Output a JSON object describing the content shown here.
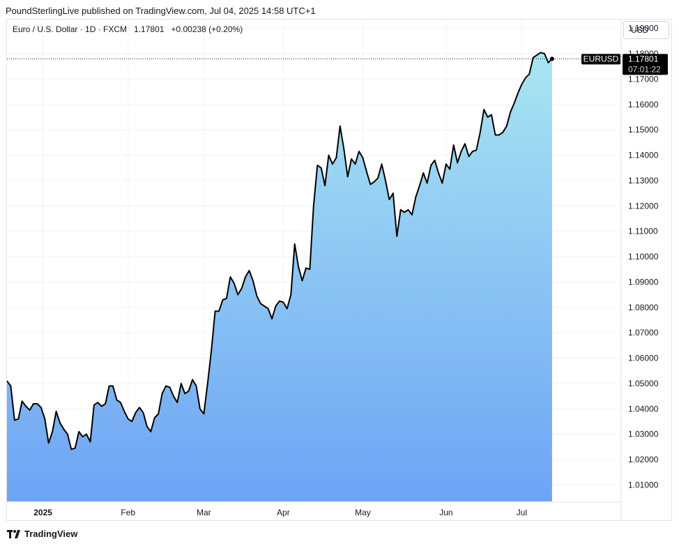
{
  "header": {
    "publisher_text": "PoundSterlingLive published on TradingView.com, Jul 04, 2025 14:58 UTC+1"
  },
  "legend": {
    "symbol_text": "Euro / U.S. Dollar · 1D · FXCM",
    "last_value": "1.17801",
    "change": "+0.00238 (+0.20%)"
  },
  "currency_selector": {
    "label": "USD"
  },
  "price_badge": {
    "ticker": "EURUSD",
    "price": "1.17801",
    "countdown": "07:01:22"
  },
  "footer": {
    "brand": "TradingView"
  },
  "colors": {
    "line": "#000000",
    "fill_top": "#a8e6f2",
    "fill_bottom": "#6ea3f5",
    "badge_bg": "#000000",
    "grid": "#f0f3fa"
  },
  "chart_data": {
    "type": "area",
    "title": "Euro / U.S. Dollar · 1D · FXCM",
    "xlabel": "",
    "ylabel": "",
    "ylim": [
      1.0035,
      1.1935
    ],
    "y_ticks": [
      "1.01000",
      "1.02000",
      "1.03000",
      "1.04000",
      "1.05000",
      "1.06000",
      "1.07000",
      "1.08000",
      "1.09000",
      "1.10000",
      "1.11000",
      "1.12000",
      "1.13000",
      "1.14000",
      "1.15000",
      "1.16000",
      "1.17000",
      "1.18000",
      "1.19000"
    ],
    "x_ticks": [
      {
        "label": "2025",
        "index": 9.5
      },
      {
        "label": "Feb",
        "index": 32
      },
      {
        "label": "Mar",
        "index": 52
      },
      {
        "label": "Apr",
        "index": 73
      },
      {
        "label": "May",
        "index": 94
      },
      {
        "label": "Jun",
        "index": 116
      },
      {
        "label": "Jul",
        "index": 136
      }
    ],
    "grid": true,
    "series": [
      {
        "values": [
          1.051,
          1.049,
          1.0355,
          1.036,
          1.043,
          1.041,
          1.0395,
          1.042,
          1.042,
          1.0405,
          1.036,
          1.0265,
          1.031,
          1.039,
          1.0345,
          1.032,
          1.03,
          1.024,
          1.0245,
          1.031,
          1.029,
          1.03,
          1.027,
          1.0415,
          1.0425,
          1.041,
          1.042,
          1.049,
          1.049,
          1.0435,
          1.0425,
          1.039,
          1.036,
          1.035,
          1.0385,
          1.0405,
          1.0385,
          1.033,
          1.031,
          1.0365,
          1.038,
          1.046,
          1.049,
          1.0485,
          1.045,
          1.0425,
          1.05,
          1.046,
          1.047,
          1.0515,
          1.049,
          1.04,
          1.038,
          1.05,
          1.063,
          1.0785,
          1.0785,
          1.083,
          1.0835,
          1.092,
          1.0895,
          1.085,
          1.0875,
          1.092,
          1.0945,
          1.0905,
          1.0845,
          1.0815,
          1.0805,
          1.0795,
          1.0755,
          1.0805,
          1.0825,
          1.082,
          1.0795,
          1.085,
          1.105,
          1.096,
          1.0905,
          1.0955,
          1.095,
          1.12,
          1.136,
          1.135,
          1.128,
          1.14,
          1.1365,
          1.139,
          1.1515,
          1.1425,
          1.1315,
          1.1385,
          1.1365,
          1.1415,
          1.139,
          1.1335,
          1.1285,
          1.1295,
          1.131,
          1.1365,
          1.13,
          1.1225,
          1.125,
          1.108,
          1.1185,
          1.1175,
          1.1185,
          1.1165,
          1.1235,
          1.128,
          1.133,
          1.129,
          1.136,
          1.138,
          1.133,
          1.129,
          1.1365,
          1.1345,
          1.144,
          1.137,
          1.1415,
          1.1445,
          1.1395,
          1.1415,
          1.142,
          1.149,
          1.158,
          1.155,
          1.156,
          1.148,
          1.148,
          1.149,
          1.1515,
          1.157,
          1.1605,
          1.1645,
          1.168,
          1.1705,
          1.172,
          1.1785,
          1.1795,
          1.1805,
          1.18,
          1.1765,
          1.17801
        ]
      }
    ]
  }
}
